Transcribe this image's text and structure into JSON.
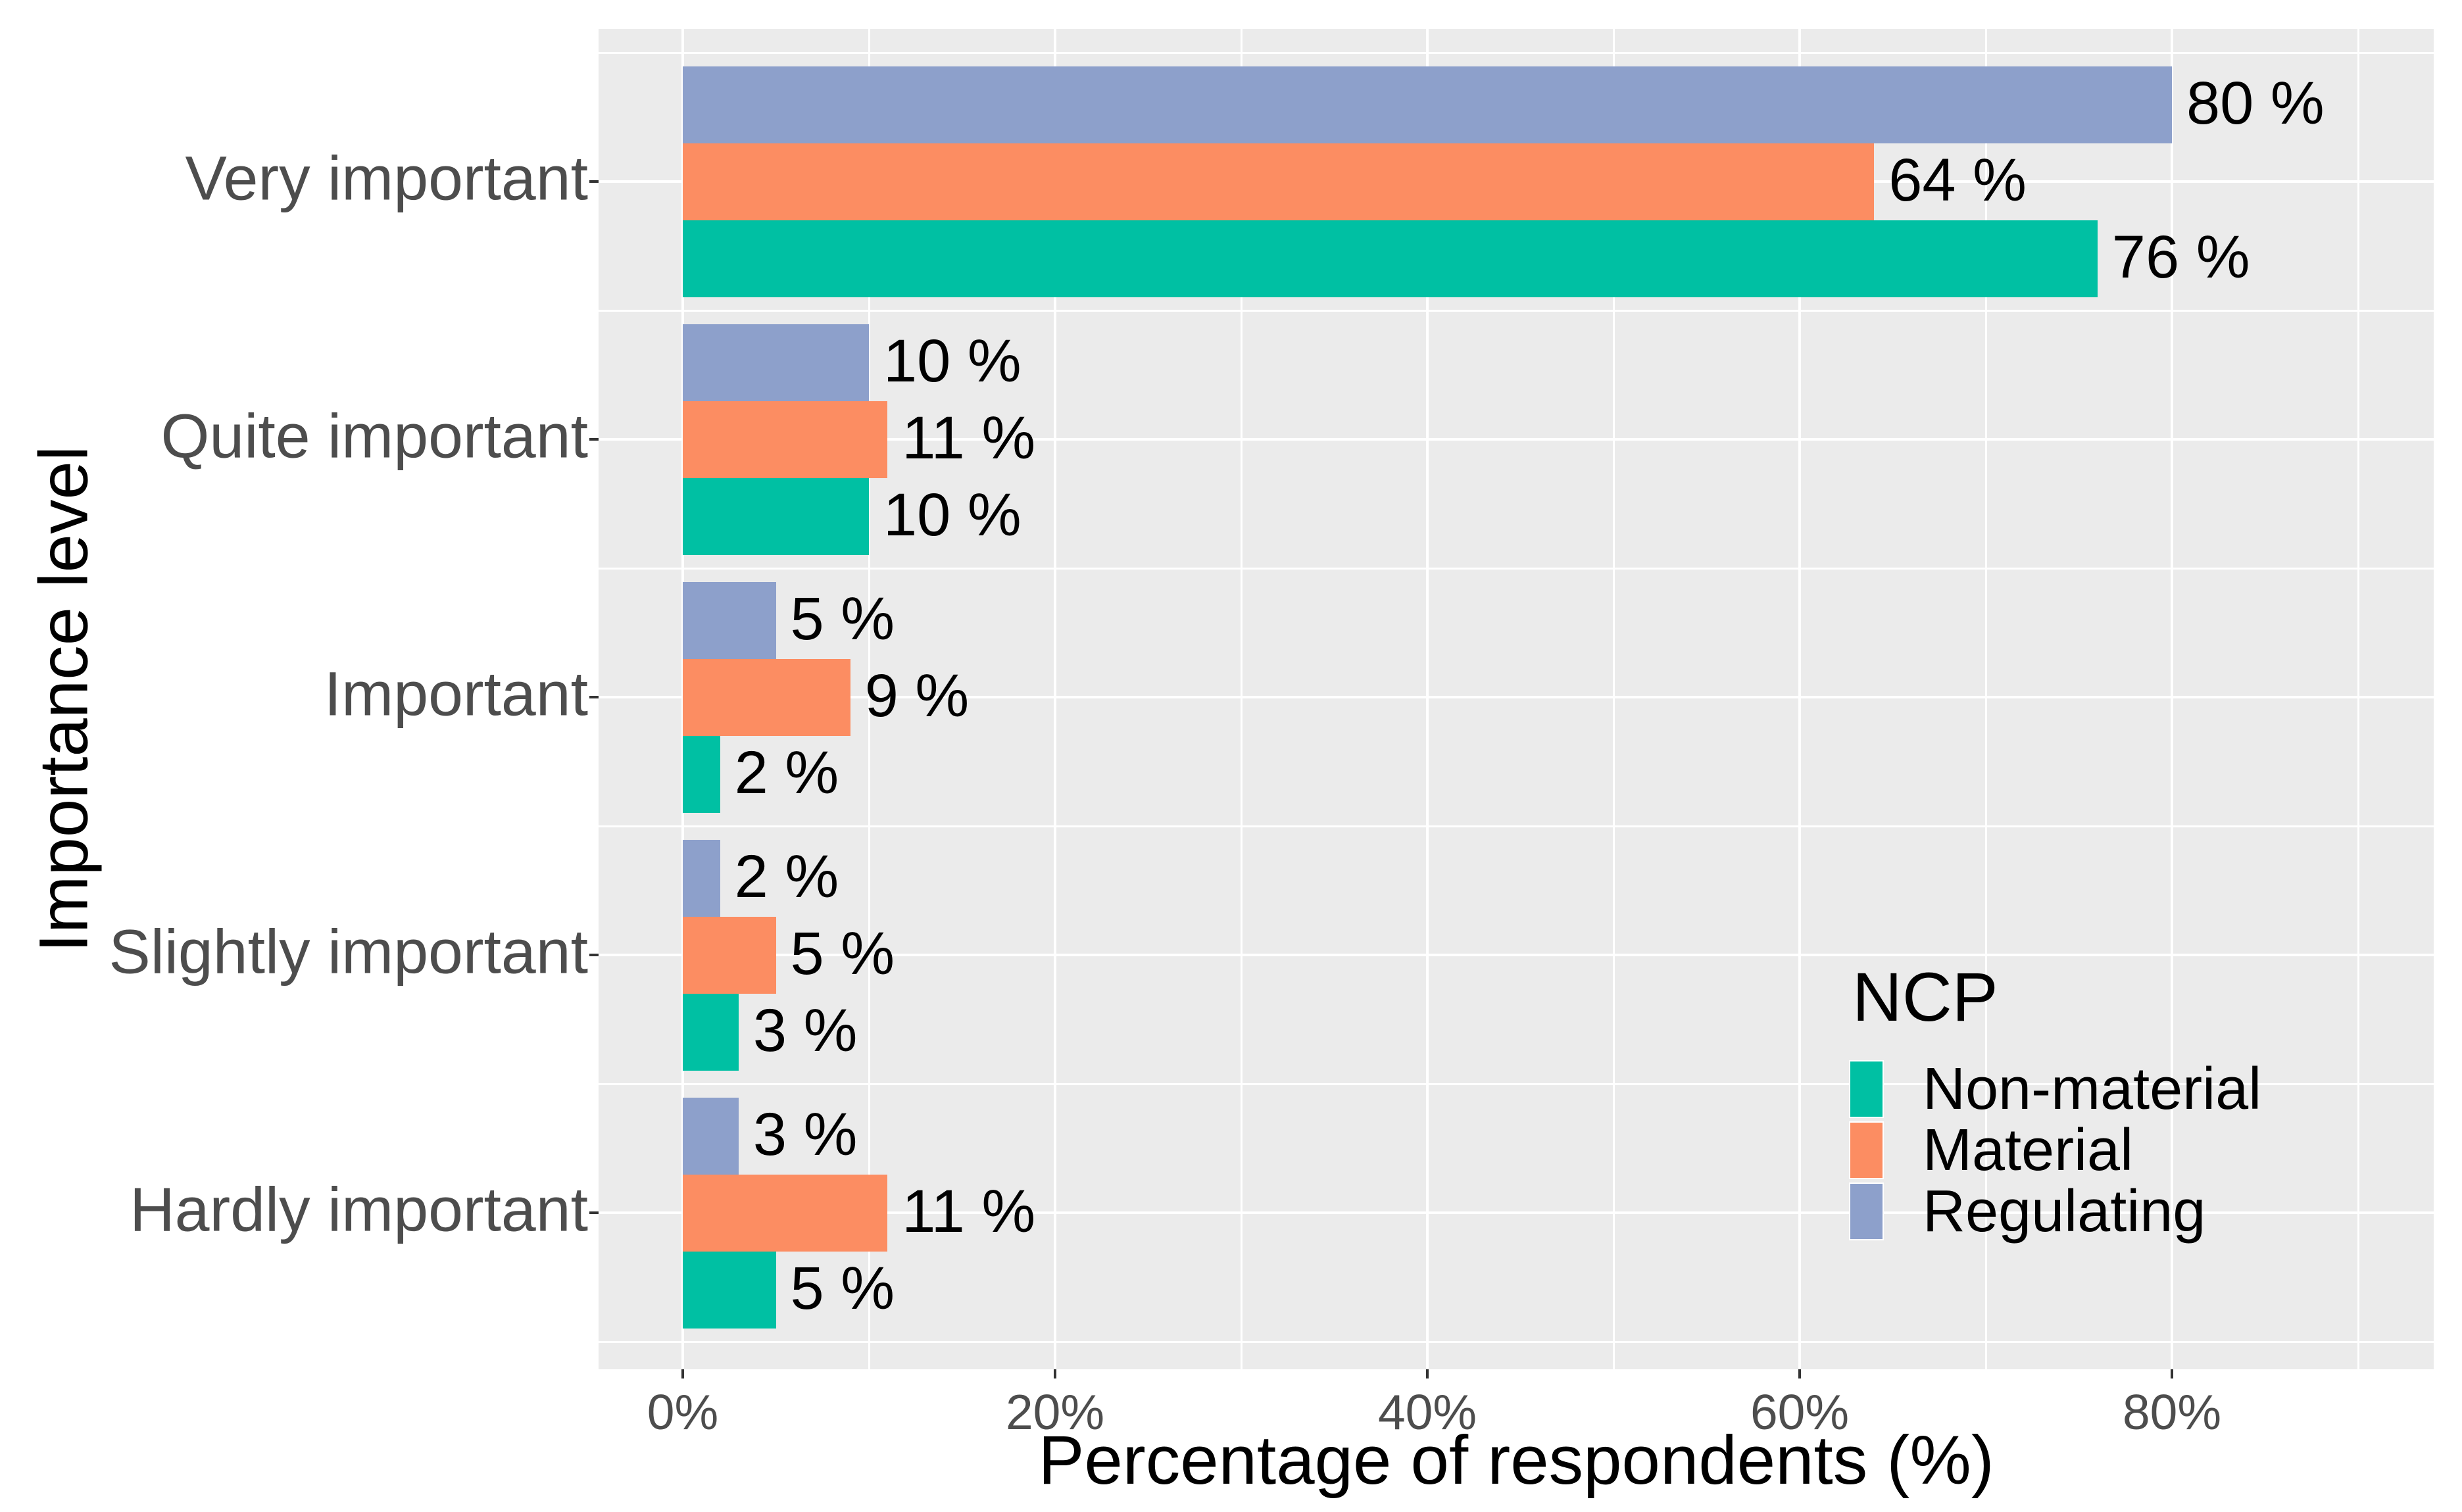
{
  "chart_data": {
    "type": "bar",
    "orientation": "horizontal",
    "title": "",
    "xlabel": "Percentage of respondents (%)",
    "ylabel": "Importance level",
    "categories": [
      "Very important",
      "Quite important",
      "Important",
      "Slightly important",
      "Hardly important"
    ],
    "series": [
      {
        "name": "Regulating",
        "color": "#8DA0CB",
        "values": [
          80,
          10,
          5,
          2,
          3
        ]
      },
      {
        "name": "Material",
        "color": "#FC8D62",
        "values": [
          64,
          11,
          9,
          5,
          11
        ]
      },
      {
        "name": "Non-material",
        "color": "#00C0A3",
        "values": [
          76,
          10,
          2,
          3,
          5
        ]
      }
    ],
    "bar_label_format": "{v} %",
    "x_ticks": [
      {
        "value": 0,
        "label": "0%"
      },
      {
        "value": 20,
        "label": "20%"
      },
      {
        "value": 40,
        "label": "40%"
      },
      {
        "value": 60,
        "label": "60%"
      },
      {
        "value": 80,
        "label": "80%"
      }
    ],
    "x_minor_ticks": [
      10,
      30,
      50,
      70,
      90
    ],
    "xlim": [
      -4.5,
      94
    ],
    "grid": {
      "major_color": "#FFFFFF",
      "minor_color": "#FFFFFF",
      "panel_background": "#EBEBEB"
    },
    "legend": {
      "title": "NCP",
      "position": "inside-right",
      "entries": [
        {
          "label": "Non-material",
          "color": "#00C0A3"
        },
        {
          "label": "Material",
          "color": "#FC8D62"
        },
        {
          "label": "Regulating",
          "color": "#8DA0CB"
        }
      ]
    },
    "text_colors": {
      "axis_text": "#4D4D4D",
      "axis_title": "#000000",
      "bar_label": "#000000",
      "legend_text": "#000000",
      "tick_mark": "#333333"
    }
  }
}
